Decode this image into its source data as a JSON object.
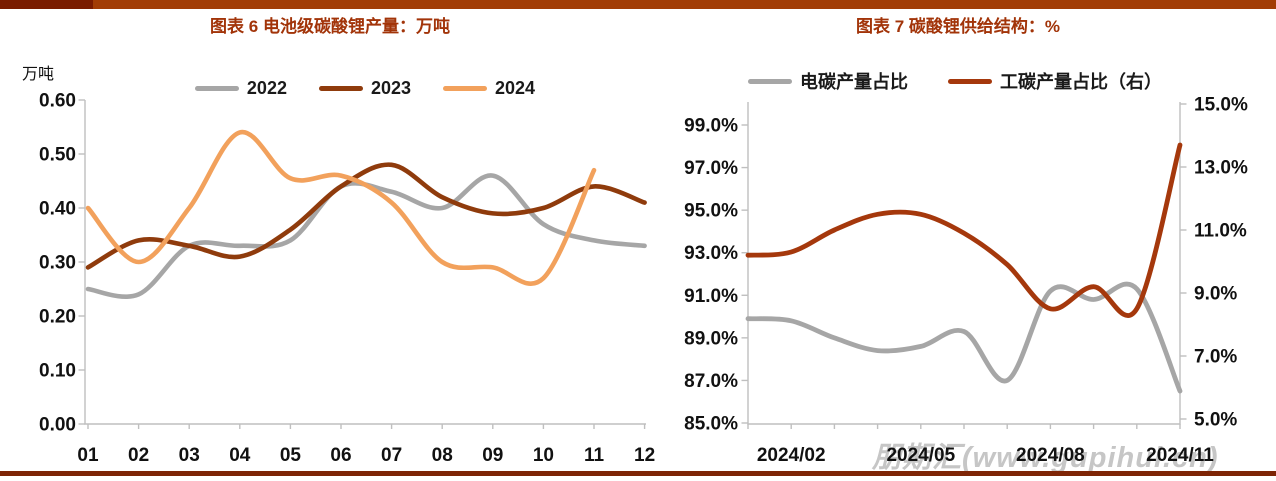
{
  "page": {
    "top_bar": {
      "accent_color": "#7A1C00",
      "bar_color": "#A23D05"
    },
    "bottom_bar": {
      "bar_color": "#7E2506"
    },
    "watermark": "朋期汇(www.gupihui.cn)",
    "background": "#FFFFFF",
    "title_color": "#A23409",
    "axis_color": "#BFBFBF"
  },
  "chart_data": [
    {
      "type": "line",
      "title": "图表 6 电池级碳酸锂产量：万吨",
      "ylabel": "万吨",
      "xlabel": "",
      "categories": [
        "01",
        "02",
        "03",
        "04",
        "05",
        "06",
        "07",
        "08",
        "09",
        "10",
        "11",
        "12"
      ],
      "ylim": [
        0.0,
        0.6
      ],
      "yticks": [
        0.0,
        0.1,
        0.2,
        0.3,
        0.4,
        0.5,
        0.6
      ],
      "grid": false,
      "smooth": true,
      "legend_position": "top",
      "series": [
        {
          "name": "2022",
          "color": "#A6A6A6",
          "values": [
            0.25,
            0.24,
            0.33,
            0.33,
            0.34,
            0.44,
            0.43,
            0.4,
            0.46,
            0.37,
            0.34,
            0.33
          ]
        },
        {
          "name": "2023",
          "color": "#8F3B0C",
          "values": [
            0.29,
            0.34,
            0.33,
            0.31,
            0.36,
            0.44,
            0.48,
            0.42,
            0.39,
            0.4,
            0.44,
            0.41
          ]
        },
        {
          "name": "2024",
          "color": "#F2A15C",
          "values": [
            0.4,
            0.3,
            0.4,
            0.54,
            0.455,
            0.46,
            0.41,
            0.3,
            0.29,
            0.27,
            0.47
          ]
        }
      ]
    },
    {
      "type": "line",
      "title": "图表 7 碳酸锂供给结构：%",
      "categories": [
        "2024/01",
        "2024/02",
        "2024/03",
        "2024/04",
        "2024/05",
        "2024/06",
        "2024/07",
        "2024/08",
        "2024/09",
        "2024/10",
        "2024/11"
      ],
      "xtick_indices": [
        1,
        4,
        7,
        10
      ],
      "xtick_labels": [
        "2024/02",
        "2024/05",
        "2024/08",
        "2024/11"
      ],
      "left_axis": {
        "min": 85,
        "max": 99,
        "ticks": [
          99,
          97,
          95,
          93,
          91,
          89,
          87,
          85
        ],
        "suffix": "%"
      },
      "right_axis": {
        "min": 5,
        "max": 15,
        "ticks": [
          15,
          13,
          11,
          9,
          7,
          5
        ],
        "suffix": "%"
      },
      "grid": false,
      "smooth": true,
      "legend_position": "top",
      "series": [
        {
          "name": "电碳产量占比",
          "axis": "left",
          "color": "#A6A6A6",
          "values": [
            89.9,
            89.8,
            89.0,
            88.4,
            88.6,
            89.3,
            87.0,
            91.2,
            90.8,
            91.3,
            86.5
          ]
        },
        {
          "name": "工碳产量占比（右）",
          "axis": "right",
          "color": "#A5380C",
          "values": [
            10.2,
            10.3,
            11.0,
            11.5,
            11.5,
            10.9,
            9.9,
            8.5,
            9.2,
            8.5,
            13.7
          ]
        }
      ]
    }
  ]
}
